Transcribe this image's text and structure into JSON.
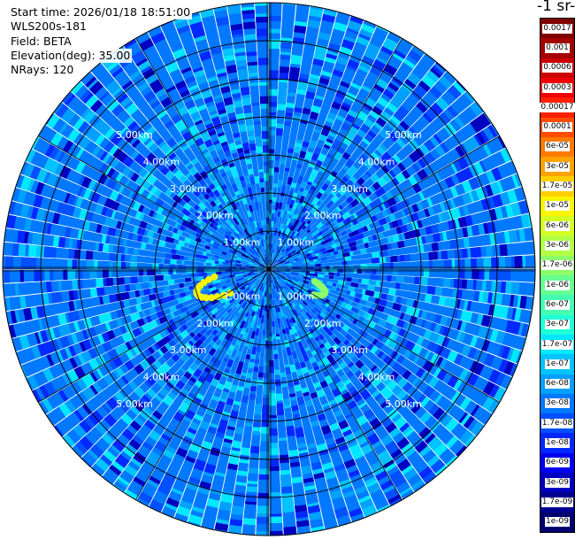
{
  "header": {
    "start_time": "Start time: 2026/01/18 18:51:00",
    "instrument": "WLS200s-181",
    "field": "Field: BETA",
    "elevation": "Elevation(deg): 35.00",
    "nrays": "NRays: 120"
  },
  "colorbar": {
    "unit_label": "-1 sr-",
    "levels": [
      {
        "label": "0.0017",
        "color": "#800000"
      },
      {
        "label": "0.001",
        "color": "#a50000"
      },
      {
        "label": "0.0006",
        "color": "#cc0000"
      },
      {
        "label": "0.0003",
        "color": "#f00000"
      },
      {
        "label": "0.00017",
        "color": "#ff2000"
      },
      {
        "label": "0.0001",
        "color": "#ff4c00"
      },
      {
        "label": "6e-05",
        "color": "#ff7a00"
      },
      {
        "label": "3e-05",
        "color": "#ffa200"
      },
      {
        "label": "1.7e-05",
        "color": "#ffcf00"
      },
      {
        "label": "1e-05",
        "color": "#f8f500"
      },
      {
        "label": "6e-06",
        "color": "#d4ff22"
      },
      {
        "label": "3e-06",
        "color": "#b2ff44"
      },
      {
        "label": "1.7e-06",
        "color": "#8cff6a"
      },
      {
        "label": "1e-06",
        "color": "#66ff90"
      },
      {
        "label": "6e-07",
        "color": "#44ffb2"
      },
      {
        "label": "3e-07",
        "color": "#20ffd8"
      },
      {
        "label": "1.7e-07",
        "color": "#00e8ff"
      },
      {
        "label": "1e-07",
        "color": "#00c4ff"
      },
      {
        "label": "6e-08",
        "color": "#00a0ff"
      },
      {
        "label": "3e-08",
        "color": "#0078ff"
      },
      {
        "label": "1.7e-08",
        "color": "#0050ff"
      },
      {
        "label": "1e-08",
        "color": "#0028ff"
      },
      {
        "label": "6e-09",
        "color": "#0000f0"
      },
      {
        "label": "3e-09",
        "color": "#0000c0"
      },
      {
        "label": "1.7e-09",
        "color": "#000090"
      },
      {
        "label": "1e-09",
        "color": "#000070"
      }
    ]
  },
  "chart_data": {
    "type": "heatmap",
    "projection": "polar PPI",
    "field": "BETA",
    "elevation_deg": 35.0,
    "nrays": 120,
    "range_rings_km": [
      1,
      2,
      3,
      4,
      5,
      6
    ],
    "ring_labels": [
      "1.00km",
      "2.00km",
      "3.00km",
      "4.00km",
      "5.00km"
    ],
    "max_range_km": 7.0,
    "color_scale": "log",
    "dominant_value": "3e-08",
    "value_range": [
      "1e-09",
      "0.0017"
    ],
    "enhanced_echoes": [
      {
        "value": "1e-05",
        "azimuth_deg": [
          238,
          262
        ],
        "range_km": [
          1.2,
          2.0
        ]
      },
      {
        "value": "1.7e-06",
        "azimuth_deg": [
          105,
          120
        ],
        "range_km": [
          1.25,
          1.6
        ]
      }
    ]
  }
}
